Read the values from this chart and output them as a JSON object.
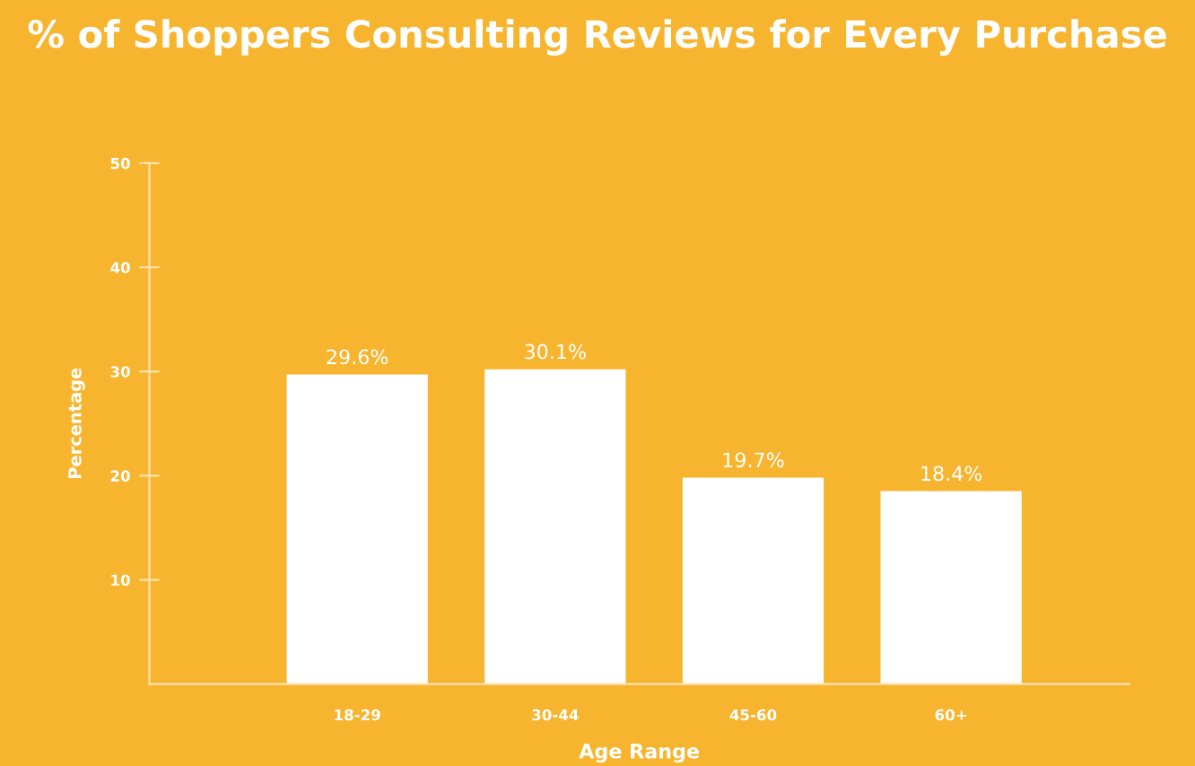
{
  "chart_data": {
    "type": "bar",
    "title": "% of Shoppers Consulting Reviews for Every Purchase",
    "xlabel": "Age Range",
    "ylabel": "Percentage",
    "categories": [
      "18-29",
      "30-44",
      "45-60",
      "60+"
    ],
    "values": [
      29.6,
      30.1,
      19.7,
      18.4
    ],
    "color": "#ffffff",
    "value_labels": [
      "29.6%",
      "30.1%",
      "19.7%",
      "18.4%"
    ],
    "ylim": [
      0,
      50
    ],
    "yticks": [
      10,
      20,
      30,
      40,
      50
    ],
    "grid": false,
    "legend": false
  }
}
